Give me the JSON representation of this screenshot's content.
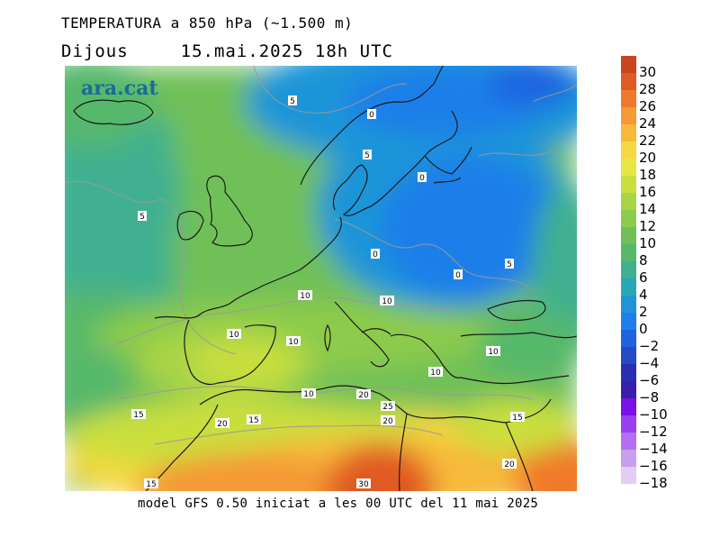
{
  "title_line1": "TEMPERATURA a 850 hPa (~1.500 m)",
  "day": "Dijous",
  "datetime": "15.mai.2025 18h UTC",
  "footer": "model GFS 0.50 iniciat a les 00 UTC del 11 mai 2025",
  "logo": "ara.cat",
  "colorbar": [
    {
      "label": "30",
      "color": "#c8451d"
    },
    {
      "label": "28",
      "color": "#e05a24"
    },
    {
      "label": "26",
      "color": "#f07a2c"
    },
    {
      "label": "24",
      "color": "#f59a35"
    },
    {
      "label": "22",
      "color": "#f7b93a"
    },
    {
      "label": "20",
      "color": "#f6d840"
    },
    {
      "label": "18",
      "color": "#e8e640"
    },
    {
      "label": "16",
      "color": "#c9df3e"
    },
    {
      "label": "14",
      "color": "#a9d446"
    },
    {
      "label": "12",
      "color": "#8ccb4c"
    },
    {
      "label": "10",
      "color": "#6fc058"
    },
    {
      "label": "8",
      "color": "#56b86a"
    },
    {
      "label": "6",
      "color": "#3fb090"
    },
    {
      "label": "4",
      "color": "#2aa7b6"
    },
    {
      "label": "2",
      "color": "#1f95d8"
    },
    {
      "label": "0",
      "color": "#1e7fe9"
    },
    {
      "label": "−2",
      "color": "#1f63e0"
    },
    {
      "label": "−4",
      "color": "#2749c6"
    },
    {
      "label": "−6",
      "color": "#2a2fb0"
    },
    {
      "label": "−8",
      "color": "#3a1fa8"
    },
    {
      "label": "−10",
      "color": "#7a10e8"
    },
    {
      "label": "−12",
      "color": "#9a3ef0"
    },
    {
      "label": "−14",
      "color": "#b36ef2"
    },
    {
      "label": "−16",
      "color": "#c99ef0"
    },
    {
      "label": "−18",
      "color": "#e2cdf3"
    }
  ],
  "contour_labels": [
    "5",
    "0",
    "5",
    "0",
    "5",
    "0",
    "5",
    "0",
    "5",
    "10",
    "10",
    "10",
    "10",
    "10",
    "10",
    "10",
    "15",
    "20",
    "25",
    "20",
    "15",
    "15",
    "20",
    "15",
    "30",
    "20",
    "0"
  ]
}
